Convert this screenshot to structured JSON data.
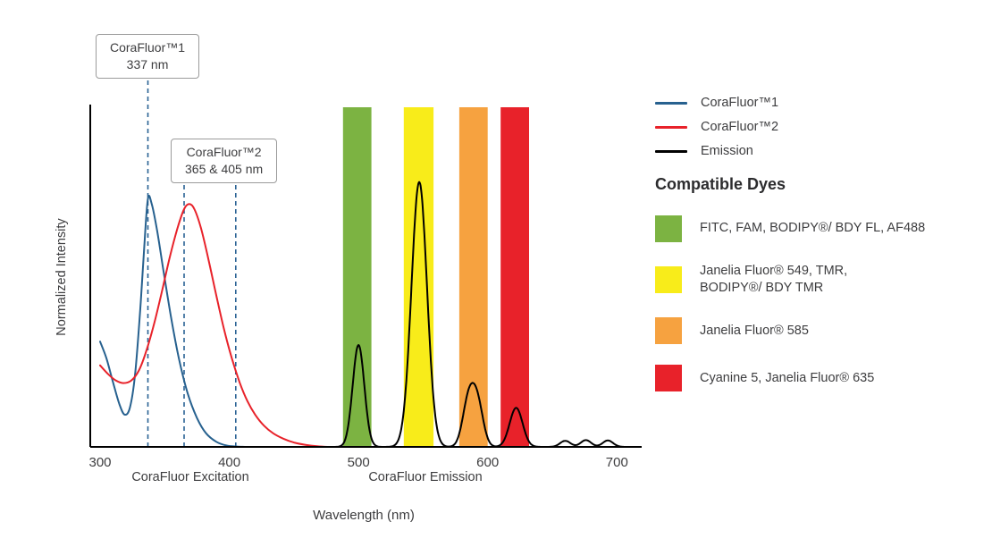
{
  "chart_data": {
    "type": "line",
    "title": "",
    "xlabel": "Wavelength (nm)",
    "ylabel": "Normalized Intensity",
    "xlim": [
      300,
      715
    ],
    "ylim": [
      0,
      1
    ],
    "x_ticks": [
      300,
      400,
      500,
      600,
      700
    ],
    "grid": false,
    "marker_line_color": "#2a6294",
    "section_labels": [
      {
        "label": "CoraFluor Excitation",
        "center_nm": 370
      },
      {
        "label": "CoraFluor Emission",
        "center_nm": 552
      }
    ],
    "callouts": [
      {
        "title": "CoraFluor™1",
        "subtitle": "337 nm",
        "lines_nm": [
          337
        ]
      },
      {
        "title": "CoraFluor™2",
        "subtitle": "365 & 405 nm",
        "lines_nm": [
          365,
          405
        ]
      }
    ],
    "filter_bands": [
      {
        "name": "green",
        "color": "#7cb342",
        "from_nm": 488,
        "to_nm": 510
      },
      {
        "name": "yellow",
        "color": "#f8ec1a",
        "from_nm": 535,
        "to_nm": 558
      },
      {
        "name": "orange",
        "color": "#f6a240",
        "from_nm": 578,
        "to_nm": 600
      },
      {
        "name": "red",
        "color": "#e8222a",
        "from_nm": 610,
        "to_nm": 632
      }
    ],
    "series": [
      {
        "key": "corafluor1-excitation",
        "name": "CoraFluor™1",
        "color": "#27618f",
        "points": [
          [
            300,
            0.31
          ],
          [
            305,
            0.26
          ],
          [
            310,
            0.19
          ],
          [
            315,
            0.125
          ],
          [
            319,
            0.095
          ],
          [
            323,
            0.115
          ],
          [
            327,
            0.21
          ],
          [
            331,
            0.4
          ],
          [
            334,
            0.58
          ],
          [
            337,
            0.73
          ],
          [
            340,
            0.715
          ],
          [
            344,
            0.64
          ],
          [
            349,
            0.52
          ],
          [
            355,
            0.38
          ],
          [
            361,
            0.26
          ],
          [
            368,
            0.155
          ],
          [
            375,
            0.085
          ],
          [
            382,
            0.04
          ],
          [
            390,
            0.015
          ],
          [
            398,
            0.004
          ],
          [
            406,
            0.001
          ],
          [
            412,
            0
          ]
        ]
      },
      {
        "key": "corafluor2-excitation",
        "name": "CoraFluor™2",
        "color": "#e8222a",
        "points": [
          [
            300,
            0.24
          ],
          [
            306,
            0.215
          ],
          [
            312,
            0.196
          ],
          [
            318,
            0.188
          ],
          [
            324,
            0.195
          ],
          [
            330,
            0.225
          ],
          [
            336,
            0.285
          ],
          [
            342,
            0.365
          ],
          [
            348,
            0.46
          ],
          [
            354,
            0.56
          ],
          [
            360,
            0.645
          ],
          [
            365,
            0.7
          ],
          [
            369,
            0.715
          ],
          [
            373,
            0.7
          ],
          [
            378,
            0.645
          ],
          [
            384,
            0.55
          ],
          [
            390,
            0.445
          ],
          [
            396,
            0.345
          ],
          [
            402,
            0.26
          ],
          [
            408,
            0.19
          ],
          [
            414,
            0.135
          ],
          [
            420,
            0.095
          ],
          [
            427,
            0.062
          ],
          [
            434,
            0.04
          ],
          [
            442,
            0.024
          ],
          [
            450,
            0.013
          ],
          [
            459,
            0.006
          ],
          [
            468,
            0.002
          ],
          [
            476,
            0
          ]
        ]
      },
      {
        "key": "emission",
        "name": "Emission",
        "color": "#000000",
        "range_nm": [
          468,
          712
        ],
        "gaussians": [
          {
            "center_nm": 500,
            "height": 0.3,
            "sigma": 4.5
          },
          {
            "center_nm": 547,
            "height": 0.78,
            "sigma": 6
          },
          {
            "center_nm": 585,
            "height": 0.13,
            "sigma": 4.5
          },
          {
            "center_nm": 592,
            "height": 0.125,
            "sigma": 4.5
          },
          {
            "center_nm": 622,
            "height": 0.115,
            "sigma": 5
          },
          {
            "center_nm": 660,
            "height": 0.018,
            "sigma": 4
          },
          {
            "center_nm": 676,
            "height": 0.02,
            "sigma": 4
          },
          {
            "center_nm": 693,
            "height": 0.019,
            "sigma": 4
          }
        ]
      }
    ]
  },
  "legend": {
    "items": [
      {
        "label": "CoraFluor™1",
        "color": "#27618f"
      },
      {
        "label": "CoraFluor™2",
        "color": "#e8222a"
      },
      {
        "label": "Emission",
        "color": "#000000"
      }
    ]
  },
  "compatible_dyes": {
    "heading": "Compatible Dyes",
    "items": [
      {
        "color": "#7cb342",
        "label": [
          "FITC, FAM, BODIPY®/ BDY FL, AF488"
        ]
      },
      {
        "color": "#f8ec1a",
        "label": [
          "Janelia Fluor® 549, TMR,",
          "BODIPY®/ BDY TMR"
        ]
      },
      {
        "color": "#f6a240",
        "label": [
          "Janelia Fluor® 585"
        ]
      },
      {
        "color": "#e8222a",
        "label": [
          "Cyanine 5, Janelia Fluor® 635"
        ]
      }
    ]
  }
}
